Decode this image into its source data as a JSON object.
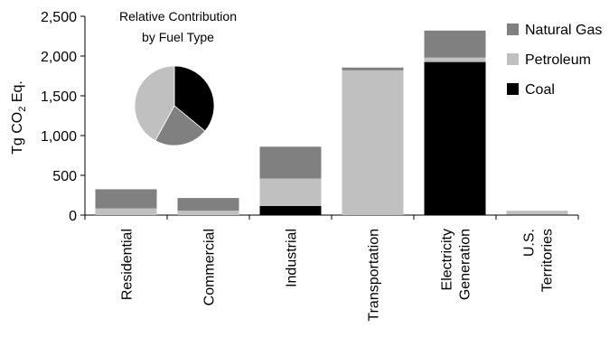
{
  "chart_data": {
    "type": "bar",
    "stacked": true,
    "ylabel": "Tg CO₂ Eq.",
    "ylim": [
      0,
      2500
    ],
    "yticks": [
      "0",
      "500",
      "1,000",
      "1,500",
      "2,000",
      "2,500"
    ],
    "yticks_values": [
      0,
      500,
      1000,
      1500,
      2000,
      2500
    ],
    "grid": false,
    "legend": "top-right",
    "categories": [
      [
        "Residential"
      ],
      [
        "Commercial"
      ],
      [
        "Industrial"
      ],
      [
        "Transportation"
      ],
      [
        "Electricity",
        "Generation"
      ],
      [
        "U.S.",
        "Territories"
      ]
    ],
    "series": [
      {
        "name": "Coal",
        "color": "#000000",
        "values": [
          0,
          0,
          115,
          0,
          1925,
          5
        ]
      },
      {
        "name": "Petroleum",
        "color": "#c0c0c0",
        "values": [
          85,
          55,
          345,
          1820,
          55,
          50
        ]
      },
      {
        "name": "Natural Gas",
        "color": "#808080",
        "values": [
          240,
          160,
          400,
          35,
          340,
          0
        ]
      }
    ],
    "inset": {
      "type": "pie",
      "title_lines": [
        "Relative Contribution",
        "by Fuel Type"
      ],
      "slices": [
        {
          "name": "Coal",
          "color": "#000000",
          "value": 36
        },
        {
          "name": "Natural Gas",
          "color": "#808080",
          "value": 22
        },
        {
          "name": "Petroleum",
          "color": "#c0c0c0",
          "value": 42
        }
      ]
    }
  }
}
